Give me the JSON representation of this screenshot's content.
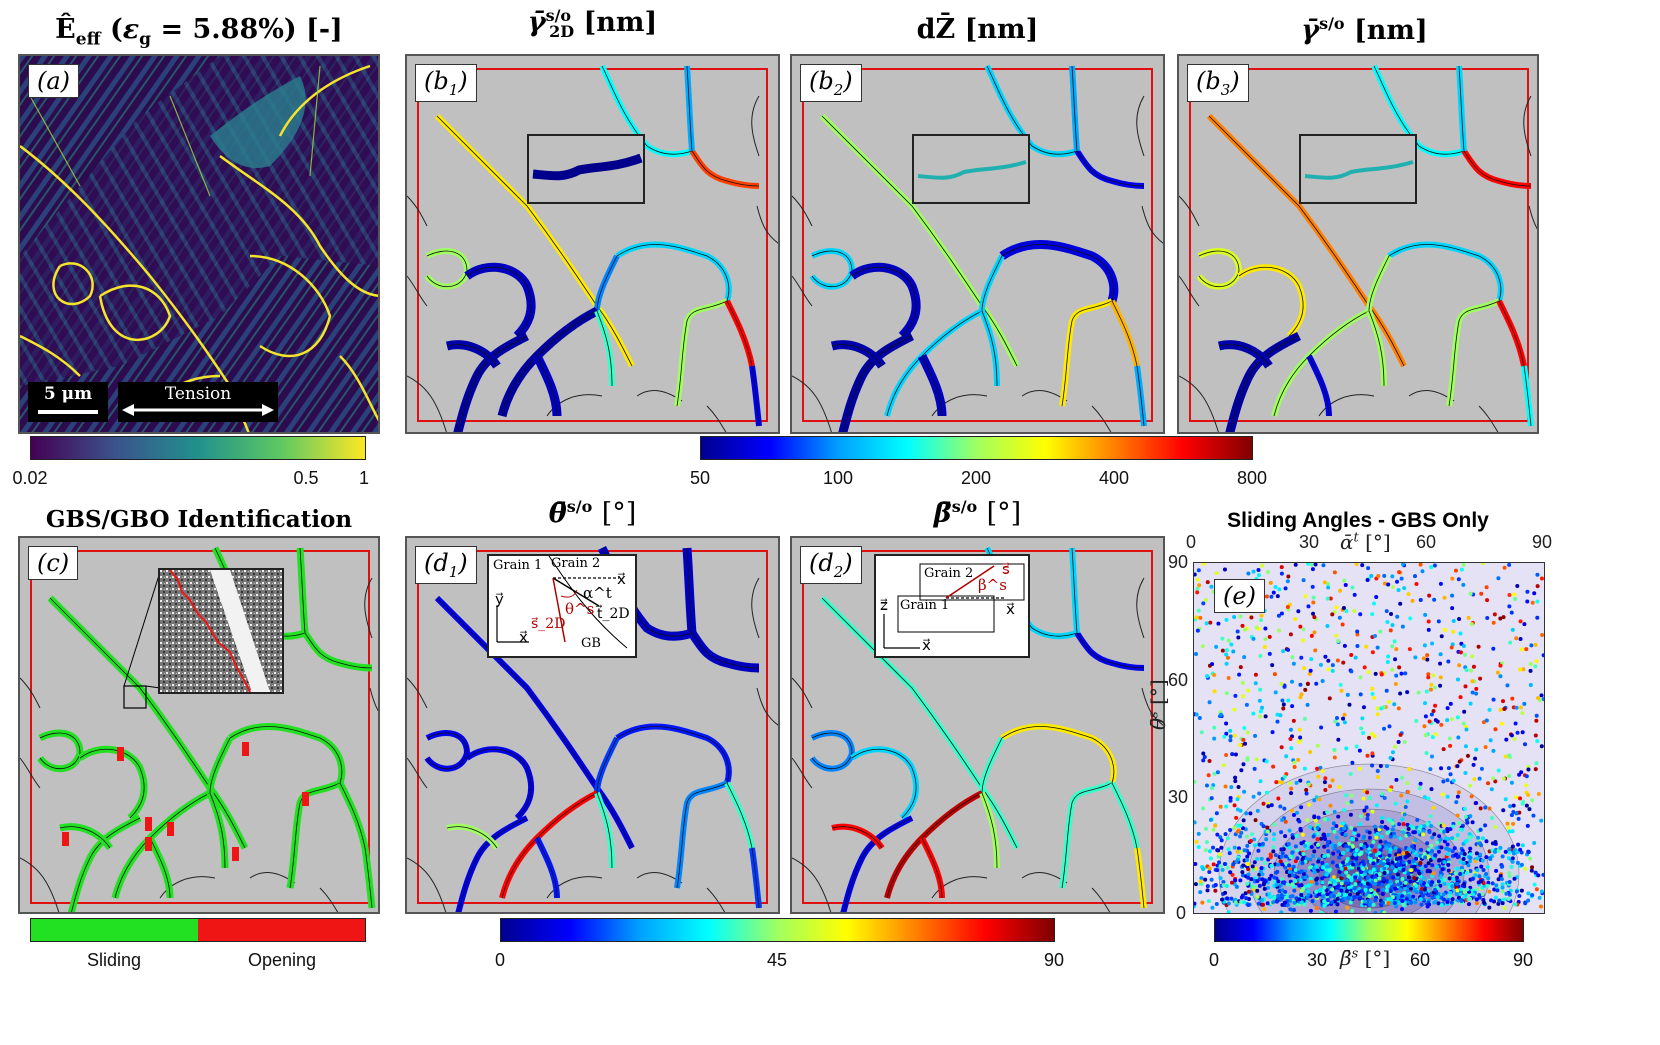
{
  "chart_data": [
    {
      "type": "heatmap",
      "id": "a",
      "title": "Ê_eff (ε_g = 5.88%) [-]",
      "panel_label": "(a)",
      "scale_bar": "5 μm",
      "annotation": "Tension",
      "colorbar": {
        "colormap": "viridis",
        "scale": "log",
        "ticks": [
          "0.02",
          "0.5",
          "1"
        ]
      }
    },
    {
      "type": "heatmap",
      "id": "b",
      "titles": [
        "γ̄_2D^s/o [nm]",
        "dZ̄ [nm]",
        "γ̄^s/o [nm]"
      ],
      "panel_labels": [
        "(b1)",
        "(b2)",
        "(b3)"
      ],
      "colorbar": {
        "colormap": "jet",
        "scale": "log",
        "ticks": [
          "50",
          "100",
          "200",
          "400",
          "800"
        ],
        "range": [
          50,
          800
        ]
      }
    },
    {
      "type": "heatmap",
      "id": "c",
      "title": "GBS/GBO Identification",
      "panel_label": "(c)",
      "legend": [
        {
          "label": "Sliding",
          "color": "#22e022"
        },
        {
          "label": "Opening",
          "color": "#f01515"
        }
      ]
    },
    {
      "type": "heatmap",
      "id": "d",
      "titles": [
        "θ̄^s/o [°]",
        "β̄^s/o [°]"
      ],
      "panel_labels": [
        "(d1)",
        "(d2)"
      ],
      "colorbar": {
        "colormap": "jet",
        "ticks": [
          "0",
          "45",
          "90"
        ],
        "range": [
          0,
          90
        ]
      },
      "inset_d1": [
        "Grain 1",
        "Grain 2",
        "y⃗",
        "x⃗",
        "x⃗",
        "α^t",
        "θ^s",
        "s⃗_2D",
        "t⃗_2D",
        "GB"
      ],
      "inset_d2": [
        "Grain 2",
        "Grain 1",
        "z⃗",
        "x⃗",
        "x⃗",
        "β^s",
        "s⃗"
      ]
    },
    {
      "type": "scatter",
      "id": "e",
      "title": "Sliding Angles - GBS Only",
      "panel_label": "(e)",
      "xlabel": "ᾱ^t [°]",
      "ylabel": "θ̄^s [°]",
      "xlim": [
        0,
        90
      ],
      "ylim": [
        0,
        90
      ],
      "xticks": [
        "0",
        "30",
        "60",
        "90"
      ],
      "yticks": [
        "0",
        "30",
        "60",
        "90"
      ],
      "color_label": "β̄^s [°]",
      "colorbar_ticks": [
        "0",
        "30",
        "60",
        "90"
      ],
      "density_peak": {
        "x": 45,
        "y": 10
      },
      "point_count_estimate": 2500
    }
  ],
  "colors": {
    "red_frame": "#e01010",
    "panel_bg": "#c0c0c0",
    "sliding": "#22e022",
    "opening": "#f01515"
  }
}
